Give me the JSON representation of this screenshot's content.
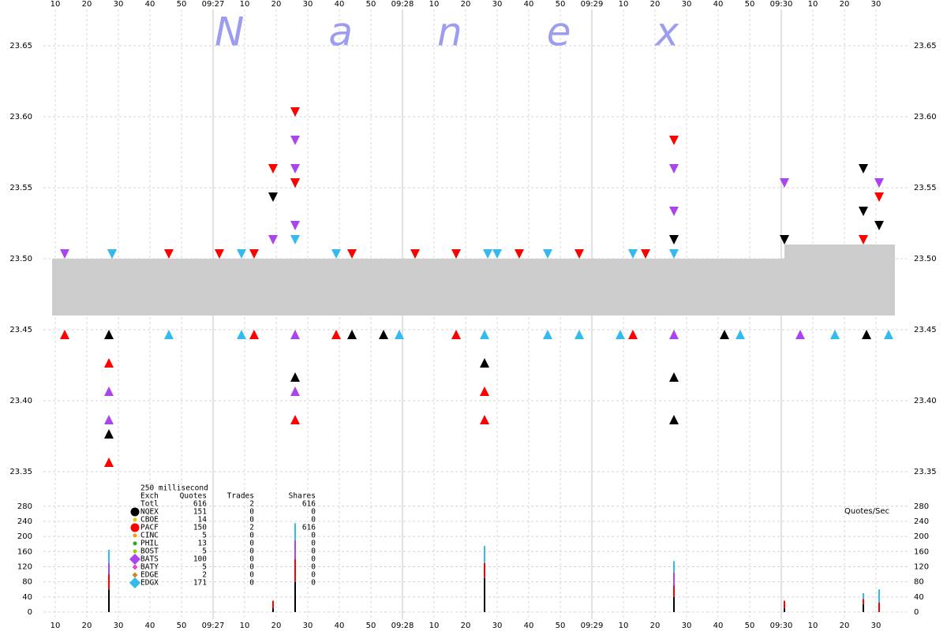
{
  "chart_data": [
    {
      "type": "scatter",
      "watermark": "Nanex",
      "grid": true,
      "xlim": [
        "09:26:00",
        "09:30:40"
      ],
      "xticks": [
        {
          "value": "09:26:10",
          "label": "10"
        },
        {
          "value": "09:26:20",
          "label": "20"
        },
        {
          "value": "09:26:30",
          "label": "30"
        },
        {
          "value": "09:26:40",
          "label": "40"
        },
        {
          "value": "09:26:50",
          "label": "50"
        },
        {
          "value": "09:27:00",
          "label": "09:27"
        },
        {
          "value": "09:27:10",
          "label": "10"
        },
        {
          "value": "09:27:20",
          "label": "20"
        },
        {
          "value": "09:27:30",
          "label": "30"
        },
        {
          "value": "09:27:40",
          "label": "40"
        },
        {
          "value": "09:27:50",
          "label": "50"
        },
        {
          "value": "09:28:00",
          "label": "09:28"
        },
        {
          "value": "09:28:10",
          "label": "10"
        },
        {
          "value": "09:28:20",
          "label": "20"
        },
        {
          "value": "09:28:30",
          "label": "30"
        },
        {
          "value": "09:28:40",
          "label": "40"
        },
        {
          "value": "09:28:50",
          "label": "50"
        },
        {
          "value": "09:29:00",
          "label": "09:29"
        },
        {
          "value": "09:29:10",
          "label": "10"
        },
        {
          "value": "09:29:20",
          "label": "20"
        },
        {
          "value": "09:29:30",
          "label": "30"
        },
        {
          "value": "09:29:40",
          "label": "40"
        },
        {
          "value": "09:29:50",
          "label": "50"
        },
        {
          "value": "09:30:00",
          "label": "09:30"
        },
        {
          "value": "09:30:10",
          "label": "10"
        },
        {
          "value": "09:30:20",
          "label": "20"
        },
        {
          "value": "09:30:30",
          "label": "30"
        }
      ],
      "ylim": [
        23.34,
        23.67
      ],
      "yticks": [
        23.35,
        {
          "value": 23.4,
          "label": "23.40"
        },
        23.45,
        {
          "value": 23.5,
          "label": "23.50"
        },
        23.55,
        {
          "value": 23.6,
          "label": "23.60"
        },
        23.65
      ],
      "spread": {
        "color": "#cccccc",
        "x": [
          "09:26:09",
          "09:30:01",
          "09:30:36"
        ],
        "bid": [
          23.46,
          23.46,
          23.46
        ],
        "ask": [
          23.5,
          23.51,
          23.51
        ]
      },
      "legend": {
        "title": "250 millisecond",
        "columns": [
          "Exch",
          "Quotes",
          "Trades",
          "Shares"
        ],
        "total": {
          "name": "Totl",
          "quotes": 616,
          "trades": 2,
          "shares": 616
        }
      },
      "series": [
        {
          "name": "NQEX",
          "color": "#000000",
          "marker": "circle",
          "size": "large",
          "quotes": 151,
          "trades": 0,
          "shares": 0,
          "ask_x": [
            "09:27:19",
            "09:27:26",
            "09:29:26",
            "09:30:01",
            "09:30:26",
            "09:30:26",
            "09:30:31"
          ],
          "ask": [
            23.54,
            23.55,
            23.51,
            23.51,
            23.56,
            23.53,
            23.52
          ],
          "bid_x": [
            "09:26:27",
            "09:26:27",
            "09:27:26",
            "09:27:44",
            "09:27:54",
            "09:28:26",
            "09:29:26",
            "09:29:26",
            "09:29:42",
            "09:30:27"
          ],
          "bid": [
            23.38,
            23.45,
            23.42,
            23.45,
            23.45,
            23.43,
            23.42,
            23.39,
            23.45,
            23.45
          ]
        },
        {
          "name": "CBOE",
          "color": "#ddcc00",
          "marker": "circle",
          "size": "small",
          "quotes": 14,
          "trades": 0,
          "shares": 0
        },
        {
          "name": "PACF",
          "color": "#ff0000",
          "marker": "circle",
          "size": "large",
          "quotes": 150,
          "trades": 2,
          "shares": 616,
          "ask_x": [
            "09:26:28",
            "09:26:46",
            "09:27:02",
            "09:27:13",
            "09:27:19",
            "09:27:26",
            "09:27:26",
            "09:27:44",
            "09:28:04",
            "09:28:17",
            "09:28:37",
            "09:28:56",
            "09:29:17",
            "09:29:26",
            "09:30:26",
            "09:30:31"
          ],
          "ask": [
            23.5,
            23.5,
            23.5,
            23.5,
            23.56,
            23.6,
            23.55,
            23.5,
            23.5,
            23.5,
            23.5,
            23.5,
            23.5,
            23.58,
            23.51,
            23.54
          ],
          "bid_x": [
            "09:26:13",
            "09:26:27",
            "09:26:27",
            "09:27:13",
            "09:27:26",
            "09:27:39",
            "09:28:17",
            "09:28:26",
            "09:28:26",
            "09:29:13"
          ],
          "bid": [
            23.45,
            23.36,
            23.43,
            23.45,
            23.39,
            23.45,
            23.45,
            23.41,
            23.39,
            23.45
          ]
        },
        {
          "name": "CINC",
          "color": "#ff9900",
          "marker": "circle",
          "size": "small",
          "quotes": 5,
          "trades": 0,
          "shares": 0
        },
        {
          "name": "PHIL",
          "color": "#22aa22",
          "marker": "circle",
          "size": "small",
          "quotes": 13,
          "trades": 0,
          "shares": 0
        },
        {
          "name": "BOST",
          "color": "#99cc00",
          "marker": "circle",
          "size": "small",
          "quotes": 5,
          "trades": 0,
          "shares": 0
        },
        {
          "name": "BATS",
          "color": "#aa44ee",
          "marker": "diamond",
          "size": "large",
          "quotes": 100,
          "trades": 0,
          "shares": 0,
          "ask_x": [
            "09:26:13",
            "09:27:19",
            "09:27:26",
            "09:27:26",
            "09:27:26",
            "09:29:26",
            "09:29:26",
            "09:30:01",
            "09:30:31"
          ],
          "ask": [
            23.5,
            23.51,
            23.58,
            23.56,
            23.52,
            23.56,
            23.53,
            23.55,
            23.55
          ],
          "bid_x": [
            "09:26:27",
            "09:26:27",
            "09:27:26",
            "09:27:26",
            "09:29:26",
            "09:30:06"
          ],
          "bid": [
            23.39,
            23.41,
            23.45,
            23.41,
            23.45,
            23.45
          ]
        },
        {
          "name": "BATY",
          "color": "#ee44cc",
          "marker": "diamond",
          "size": "small",
          "quotes": 5,
          "trades": 0,
          "shares": 0
        },
        {
          "name": "EDGE",
          "color": "#cc8822",
          "marker": "diamond",
          "size": "small",
          "quotes": 2,
          "trades": 0,
          "shares": 0
        },
        {
          "name": "EDGX",
          "color": "#33bbee",
          "marker": "diamond",
          "size": "large",
          "quotes": 171,
          "trades": 0,
          "shares": 0,
          "ask_x": [
            "09:26:28",
            "09:27:09",
            "09:27:26",
            "09:27:39",
            "09:28:27",
            "09:28:30",
            "09:28:46",
            "09:29:13",
            "09:29:26"
          ],
          "ask": [
            23.5,
            23.5,
            23.51,
            23.5,
            23.5,
            23.5,
            23.5,
            23.5,
            23.5
          ],
          "bid_x": [
            "09:26:46",
            "09:27:09",
            "09:27:59",
            "09:28:26",
            "09:28:46",
            "09:28:56",
            "09:29:09",
            "09:29:47",
            "09:30:17",
            "09:30:34"
          ],
          "bid": [
            23.45,
            23.45,
            23.45,
            23.45,
            23.45,
            23.45,
            23.45,
            23.45,
            23.45,
            23.45
          ]
        }
      ]
    },
    {
      "type": "bar",
      "title": "Quotes/Sec",
      "ylim": [
        0,
        290
      ],
      "yticks": [
        0,
        40,
        80,
        120,
        160,
        200,
        240,
        280
      ],
      "x": [
        "09:26:27",
        "09:27:19",
        "09:27:26",
        "09:28:26",
        "09:29:26",
        "09:30:01",
        "09:30:26",
        "09:30:31"
      ],
      "series": [
        {
          "name": "NQEX",
          "color": "#000000",
          "values": [
            60,
            10,
            80,
            90,
            40,
            10,
            20,
            0
          ]
        },
        {
          "name": "PACF",
          "color": "#ff0000",
          "values": [
            40,
            20,
            60,
            40,
            30,
            20,
            15,
            25
          ]
        },
        {
          "name": "BATS",
          "color": "#aa44ee",
          "values": [
            30,
            0,
            50,
            0,
            35,
            0,
            0,
            0
          ]
        },
        {
          "name": "EDGX",
          "color": "#33bbee",
          "values": [
            35,
            0,
            45,
            45,
            30,
            0,
            15,
            35
          ]
        }
      ]
    }
  ]
}
